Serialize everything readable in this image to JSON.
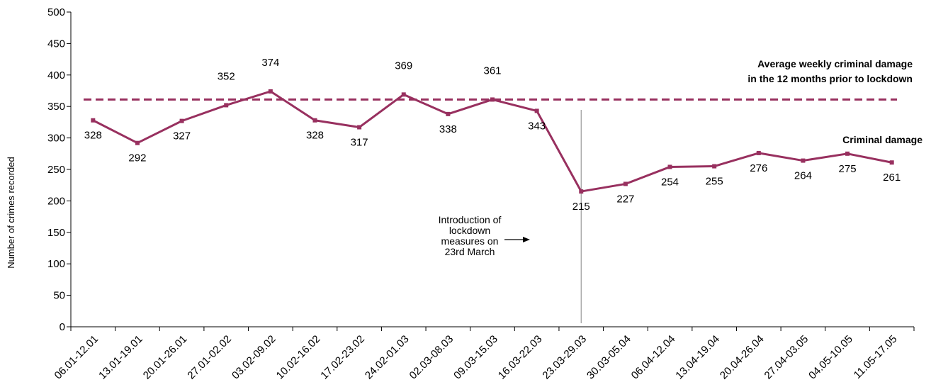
{
  "chart_data": {
    "type": "line",
    "title": "",
    "xlabel": "",
    "ylabel": "Number of crimes recorded",
    "ylim": [
      0,
      500
    ],
    "yticks": [
      0,
      50,
      100,
      150,
      200,
      250,
      300,
      350,
      400,
      450,
      500
    ],
    "grid": false,
    "categories": [
      "06.01-12.01",
      "13.01-19.01",
      "20.01-26.01",
      "27.01-02.02",
      "03.02-09.02",
      "10.02-16.02",
      "17.02-23.02",
      "24.02-01.03",
      "02.03-08.03",
      "09.03-15.03",
      "16.03-22.03",
      "23.03-29.03",
      "30.03-05.04",
      "06.04-12.04",
      "13.04-19.04",
      "20.04-26.04",
      "27.04-03.05",
      "04.05-10.05",
      "11.05-17.05"
    ],
    "series": [
      {
        "name": "Criminal damage",
        "values": [
          328,
          292,
          327,
          352,
          374,
          328,
          317,
          369,
          338,
          361,
          343,
          215,
          227,
          254,
          255,
          276,
          264,
          275,
          261
        ],
        "color": "#98305f"
      }
    ],
    "reference_line": {
      "label_line1": "Average weekly criminal damage",
      "label_line2": "in the 12 months prior to lockdown",
      "value": 361,
      "color": "#98305f",
      "style": "dashed"
    },
    "annotation": {
      "lines": [
        "Introduction of",
        "lockdown",
        "measures on",
        "23rd March"
      ],
      "arrow": "right",
      "category_index": 11
    }
  }
}
